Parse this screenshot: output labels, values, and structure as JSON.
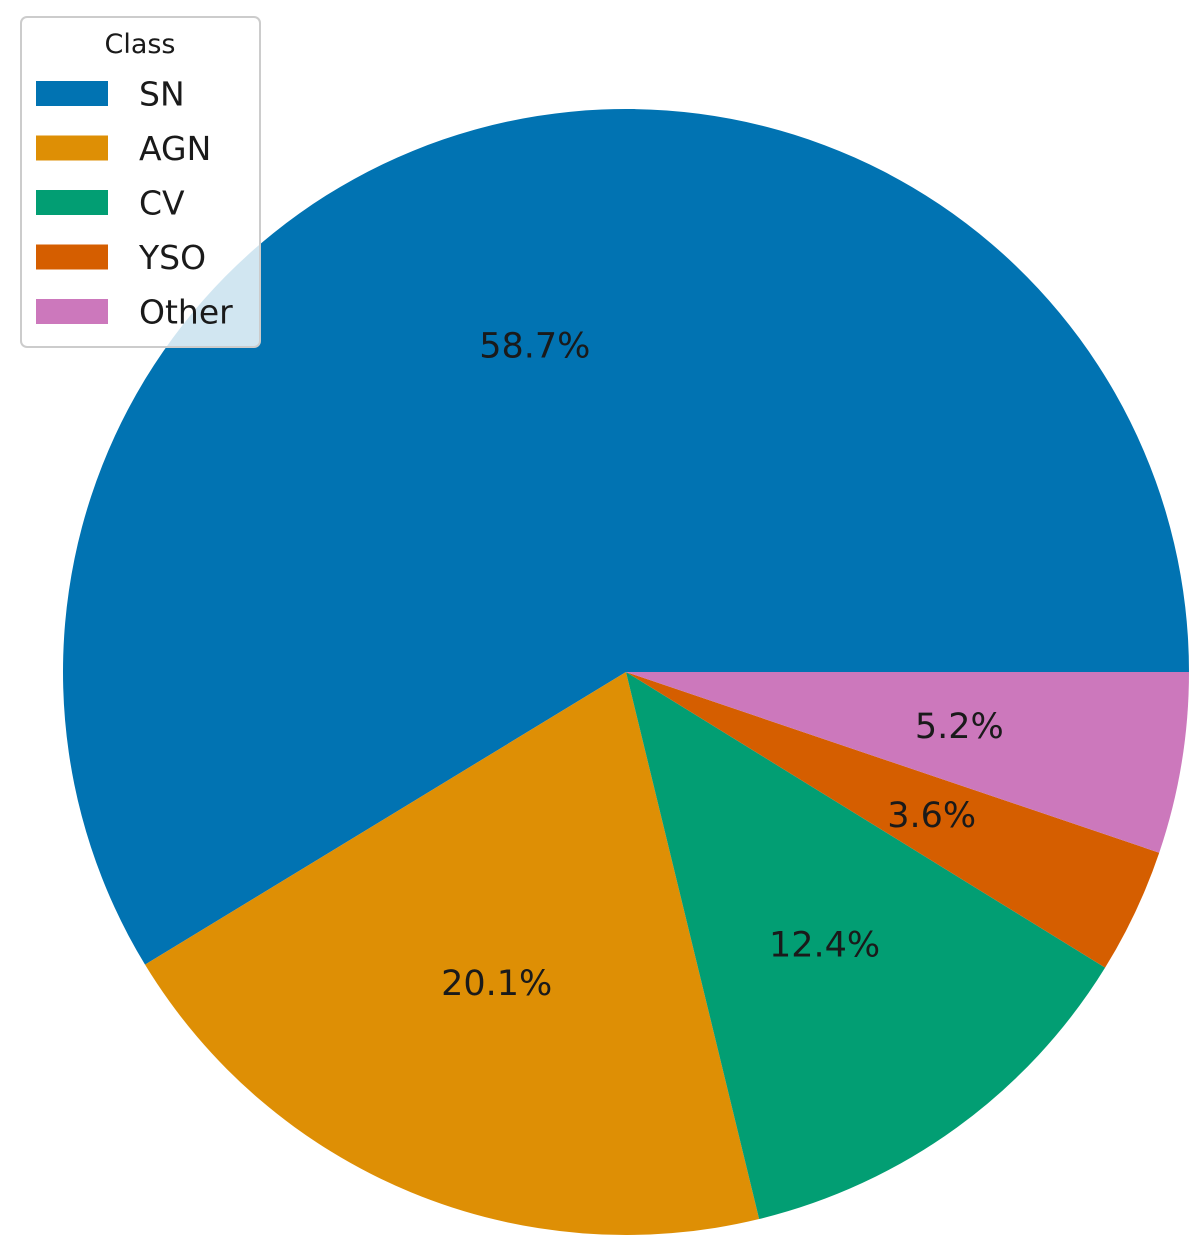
{
  "chart_data": {
    "type": "pie",
    "values": [
      58.7,
      20.1,
      12.4,
      3.6,
      5.2
    ],
    "slices": [
      {
        "label": "SN",
        "value": 58.7,
        "pct_label": "58.7%",
        "color": "#0173b2"
      },
      {
        "label": "AGN",
        "value": 20.1,
        "pct_label": "20.1%",
        "color": "#de8f05"
      },
      {
        "label": "CV",
        "value": 12.4,
        "pct_label": "12.4%",
        "color": "#029e73"
      },
      {
        "label": "YSO",
        "value": 3.6,
        "pct_label": "3.6%",
        "color": "#d55e00"
      },
      {
        "label": "Other",
        "value": 5.2,
        "pct_label": "5.2%",
        "color": "#cc78bc"
      }
    ],
    "start_angle_deg": 0,
    "direction": "counterclockwise",
    "legend": {
      "title": "Class",
      "placement": "top-left"
    }
  }
}
